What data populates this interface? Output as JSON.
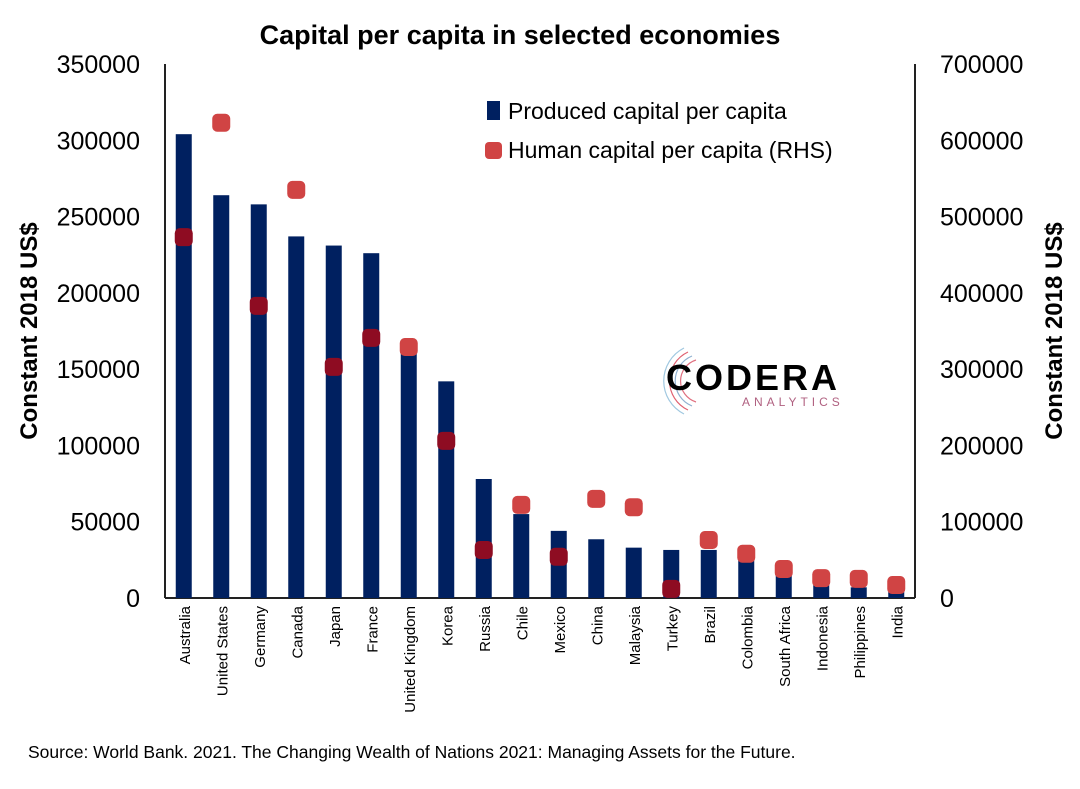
{
  "chart_data": {
    "type": "bar",
    "title": "Capital per capita in selected economies",
    "ylabel": "Constant 2018 US$",
    "ylabel_right": "Constant 2018 US$",
    "ylim": [
      0,
      350000
    ],
    "ylim_right": [
      0,
      700000
    ],
    "yticks": [
      "0",
      "50000",
      "100000",
      "150000",
      "200000",
      "250000",
      "300000",
      "350000"
    ],
    "yticks_right": [
      "0",
      "100000",
      "200000",
      "300000",
      "400000",
      "500000",
      "600000",
      "700000"
    ],
    "categories": [
      "Australia",
      "United States",
      "Germany",
      "Canada",
      "Japan",
      "France",
      "United Kingdom",
      "Korea",
      "Russia",
      "Chile",
      "Mexico",
      "China",
      "Malaysia",
      "Turkey",
      "Brazil",
      "Colombia",
      "South Africa",
      "Indonesia",
      "Philippines",
      "India"
    ],
    "series": [
      {
        "name": "Produced capital per capita",
        "type": "bar",
        "axis": "left",
        "color": "#002060",
        "values": [
          304000,
          264000,
          258000,
          237000,
          231000,
          226000,
          165000,
          142000,
          78000,
          55000,
          44000,
          38500,
          33000,
          31500,
          31500,
          25000,
          15000,
          8500,
          7000,
          4000
        ]
      },
      {
        "name": "Human capital per capita (RHS)",
        "type": "scatter",
        "axis": "right",
        "color": "#d04444",
        "values": [
          473000,
          623000,
          383000,
          535000,
          303000,
          341000,
          329000,
          206000,
          63000,
          122000,
          54000,
          130000,
          119000,
          12000,
          76000,
          58000,
          38000,
          26000,
          25000,
          17000
        ]
      }
    ],
    "legend_position": "top-right",
    "grid": false
  },
  "logo": {
    "name": "CODERA",
    "sub": "ANALYTICS"
  },
  "source": "Source: World Bank. 2021. The Changing Wealth of Nations 2021: Managing Assets for the Future."
}
